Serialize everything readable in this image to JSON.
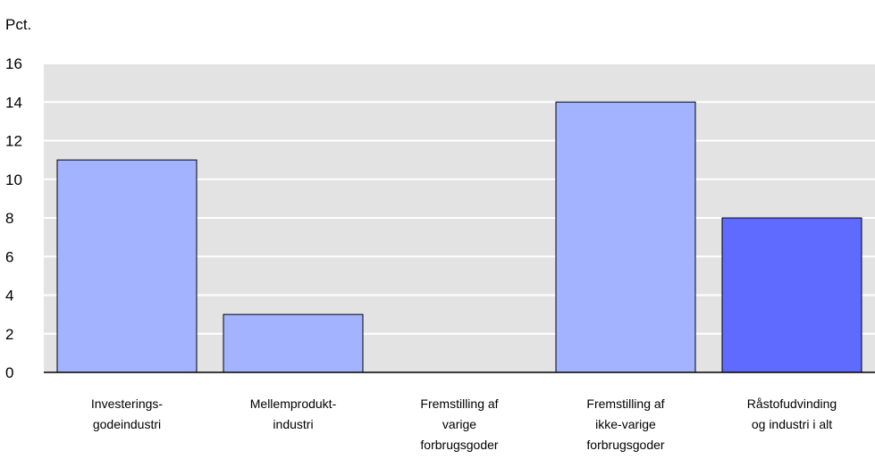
{
  "chart_data": {
    "type": "bar",
    "ylabel": "Pct.",
    "ylim": [
      0,
      16
    ],
    "yticks": [
      0,
      2,
      4,
      6,
      8,
      10,
      12,
      14,
      16
    ],
    "grid": true,
    "categories": [
      [
        "Investerings-",
        "godeindustri"
      ],
      [
        "Mellemprodukt-",
        "industri"
      ],
      [
        "Fremstilling af",
        "varige",
        "forbrugsgoder"
      ],
      [
        "Fremstilling af",
        "ikke-varige",
        "forbrugsgoder"
      ],
      [
        "Råstofudvinding",
        "og industri i alt"
      ]
    ],
    "values": [
      11,
      3,
      0,
      14,
      8
    ],
    "colors": [
      "#a3b3ff",
      "#a3b3ff",
      "#a3b3ff",
      "#a3b3ff",
      "#5f6bff"
    ],
    "plot_background": "#e3e3e3",
    "grid_color": "#ffffff"
  }
}
